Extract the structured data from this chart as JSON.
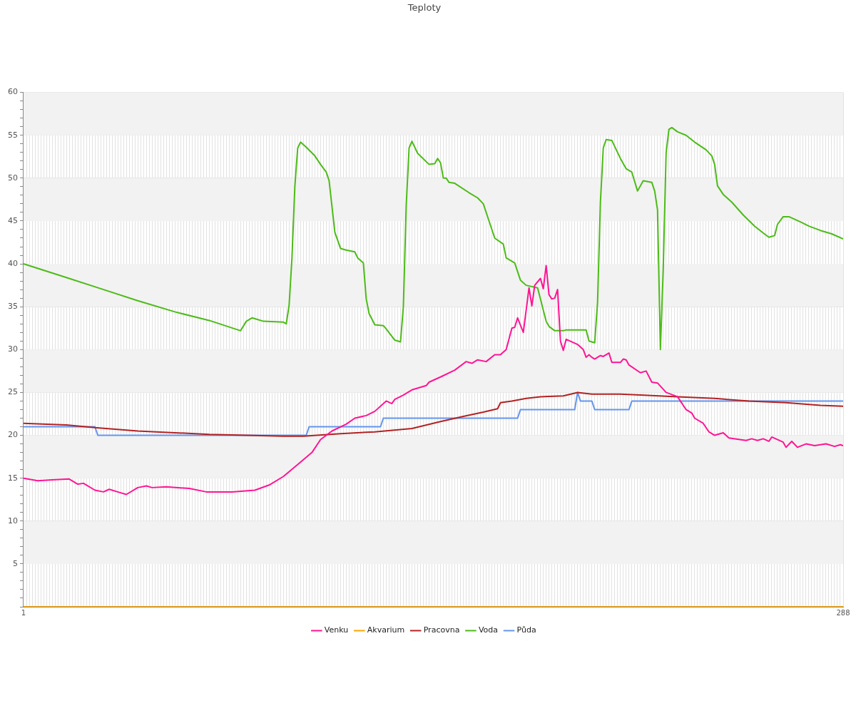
{
  "chart_data": {
    "type": "line",
    "title": "Teploty",
    "xlim": [
      1,
      288
    ],
    "xticks": [
      1,
      {
        "value": 2,
        "label": null
      },
      {
        "value": 3,
        "label": null
      },
      {
        "value": 4,
        "label": null
      },
      {
        "value": 5,
        "label": null
      },
      {
        "value": 6,
        "label": null
      },
      {
        "value": 7,
        "label": null
      },
      {
        "value": 8,
        "label": null
      },
      {
        "value": 9,
        "label": null
      },
      {
        "value": 10,
        "label": null
      },
      {
        "value": 11,
        "label": null
      },
      {
        "value": 12,
        "label": null
      },
      {
        "value": 13,
        "label": null
      },
      {
        "value": 14,
        "label": null
      },
      {
        "value": 15,
        "label": null
      },
      {
        "value": 16,
        "label": null
      },
      {
        "value": 17,
        "label": null
      },
      {
        "value": 18,
        "label": null
      },
      {
        "value": 19,
        "label": null
      },
      {
        "value": 20,
        "label": null
      },
      {
        "value": 21,
        "label": null
      },
      {
        "value": 22,
        "label": null
      },
      {
        "value": 23,
        "label": null
      },
      {
        "value": 24,
        "label": null
      },
      {
        "value": 25,
        "label": null
      },
      {
        "value": 26,
        "label": null
      },
      {
        "value": 27,
        "label": null
      },
      {
        "value": 28,
        "label": null
      },
      {
        "value": 29,
        "label": null
      },
      {
        "value": 30,
        "label": null
      },
      {
        "value": 31,
        "label": null
      },
      {
        "value": 32,
        "label": null
      },
      {
        "value": 33,
        "label": null
      },
      {
        "value": 34,
        "label": null
      },
      {
        "value": 35,
        "label": null
      },
      {
        "value": 36,
        "label": null
      },
      {
        "value": 37,
        "label": null
      },
      {
        "value": 38,
        "label": null
      },
      {
        "value": 39,
        "label": null
      },
      {
        "value": 40,
        "label": null
      },
      {
        "value": 41,
        "label": null
      },
      {
        "value": 42,
        "label": null
      },
      {
        "value": 43,
        "label": null
      },
      {
        "value": 44,
        "label": null
      },
      {
        "value": 45,
        "label": null
      },
      {
        "value": 46,
        "label": null
      },
      {
        "value": 47,
        "label": null
      },
      {
        "value": 48,
        "label": null
      },
      {
        "value": 49,
        "label": null
      },
      {
        "value": 50,
        "label": null
      },
      {
        "value": 51,
        "label": null
      },
      {
        "value": 52,
        "label": null
      },
      {
        "value": 53,
        "label": null
      },
      {
        "value": 54,
        "label": null
      },
      {
        "value": 55,
        "label": null
      },
      {
        "value": 56,
        "label": null
      },
      {
        "value": 57,
        "label": null
      },
      {
        "value": 58,
        "label": null
      },
      {
        "value": 59,
        "label": null
      },
      {
        "value": 60,
        "label": null
      },
      {
        "value": 61,
        "label": null
      },
      {
        "value": 62,
        "label": null
      },
      {
        "value": 63,
        "label": null
      },
      {
        "value": 64,
        "label": null
      },
      {
        "value": 65,
        "label": null
      },
      {
        "value": 66,
        "label": null
      },
      {
        "value": 67,
        "label": null
      },
      {
        "value": 68,
        "label": null
      },
      {
        "value": 69,
        "label": null
      },
      {
        "value": 70,
        "label": null
      },
      {
        "value": 71,
        "label": null
      },
      {
        "value": 72,
        "label": null
      },
      {
        "value": 73,
        "label": null
      },
      {
        "value": 74,
        "label": null
      },
      {
        "value": 75,
        "label": null
      },
      {
        "value": 76,
        "label": null
      },
      {
        "value": 77,
        "label": null
      },
      {
        "value": 78,
        "label": null
      },
      {
        "value": 79,
        "label": null
      },
      {
        "value": 80,
        "label": null
      },
      {
        "value": 81,
        "label": null
      },
      {
        "value": 82,
        "label": null
      },
      {
        "value": 83,
        "label": null
      },
      {
        "value": 84,
        "label": null
      },
      {
        "value": 85,
        "label": null
      },
      {
        "value": 86,
        "label": null
      },
      {
        "value": 87,
        "label": null
      },
      {
        "value": 88,
        "label": null
      },
      {
        "value": 89,
        "label": null
      },
      {
        "value": 90,
        "label": null
      },
      {
        "value": 91,
        "label": null
      },
      {
        "value": 92,
        "label": null
      },
      {
        "value": 93,
        "label": null
      },
      {
        "value": 94,
        "label": null
      },
      {
        "value": 95,
        "label": null
      },
      {
        "value": 96,
        "label": null
      },
      {
        "value": 97,
        "label": null
      },
      {
        "value": 98,
        "label": null
      },
      {
        "value": 99,
        "label": null
      },
      {
        "value": 100,
        "label": null
      },
      {
        "value": 101,
        "label": null
      },
      {
        "value": 102,
        "label": null
      },
      {
        "value": 103,
        "label": null
      },
      {
        "value": 104,
        "label": null
      },
      {
        "value": 105,
        "label": null
      },
      {
        "value": 106,
        "label": null
      },
      {
        "value": 107,
        "label": null
      },
      {
        "value": 108,
        "label": null
      },
      {
        "value": 109,
        "label": null
      },
      {
        "value": 110,
        "label": null
      },
      {
        "value": 111,
        "label": null
      },
      {
        "value": 112,
        "label": null
      },
      {
        "value": 113,
        "label": null
      },
      {
        "value": 114,
        "label": null
      },
      {
        "value": 115,
        "label": null
      },
      {
        "value": 116,
        "label": null
      },
      {
        "value": 117,
        "label": null
      },
      {
        "value": 118,
        "label": null
      },
      {
        "value": 119,
        "label": null
      },
      {
        "value": 120,
        "label": null
      },
      {
        "value": 121,
        "label": null
      },
      {
        "value": 122,
        "label": null
      },
      {
        "value": 123,
        "label": null
      },
      {
        "value": 124,
        "label": null
      },
      {
        "value": 125,
        "label": null
      },
      {
        "value": 126,
        "label": null
      },
      {
        "value": 127,
        "label": null
      },
      {
        "value": 128,
        "label": null
      },
      {
        "value": 129,
        "label": null
      },
      {
        "value": 130,
        "label": null
      },
      {
        "value": 131,
        "label": null
      },
      {
        "value": 132,
        "label": null
      },
      {
        "value": 133,
        "label": null
      },
      {
        "value": 134,
        "label": null
      },
      {
        "value": 135,
        "label": null
      },
      {
        "value": 136,
        "label": null
      },
      {
        "value": 137,
        "label": null
      },
      {
        "value": 138,
        "label": null
      },
      {
        "value": 139,
        "label": null
      },
      {
        "value": 140,
        "label": null
      },
      {
        "value": 141,
        "label": null
      },
      {
        "value": 142,
        "label": null
      },
      {
        "value": 143,
        "label": null
      },
      {
        "value": 144,
        "label": null
      },
      {
        "value": 145,
        "label": null
      },
      {
        "value": 146,
        "label": null
      },
      {
        "value": 147,
        "label": null
      },
      {
        "value": 148,
        "label": null
      },
      {
        "value": 149,
        "label": null
      },
      {
        "value": 150,
        "label": null
      },
      {
        "value": 151,
        "label": null
      },
      {
        "value": 152,
        "label": null
      },
      {
        "value": 153,
        "label": null
      },
      {
        "value": 154,
        "label": null
      },
      {
        "value": 155,
        "label": null
      },
      {
        "value": 156,
        "label": null
      },
      {
        "value": 157,
        "label": null
      },
      {
        "value": 158,
        "label": null
      },
      {
        "value": 159,
        "label": null
      },
      {
        "value": 160,
        "label": null
      },
      {
        "value": 161,
        "label": null
      },
      {
        "value": 162,
        "label": null
      },
      {
        "value": 163,
        "label": null
      },
      {
        "value": 164,
        "label": null
      },
      {
        "value": 165,
        "label": null
      },
      {
        "value": 166,
        "label": null
      },
      {
        "value": 167,
        "label": null
      },
      {
        "value": 168,
        "label": null
      },
      {
        "value": 169,
        "label": null
      },
      {
        "value": 170,
        "label": null
      },
      {
        "value": 171,
        "label": null
      },
      {
        "value": 172,
        "label": null
      },
      {
        "value": 173,
        "label": null
      },
      {
        "value": 174,
        "label": null
      },
      {
        "value": 175,
        "label": null
      },
      {
        "value": 176,
        "label": null
      },
      {
        "value": 177,
        "label": null
      },
      {
        "value": 178,
        "label": null
      },
      {
        "value": 179,
        "label": null
      },
      {
        "value": 180,
        "label": null
      },
      {
        "value": 181,
        "label": null
      },
      {
        "value": 182,
        "label": null
      },
      {
        "value": 183,
        "label": null
      },
      {
        "value": 184,
        "label": null
      },
      {
        "value": 185,
        "label": null
      },
      {
        "value": 186,
        "label": null
      },
      {
        "value": 187,
        "label": null
      },
      {
        "value": 188,
        "label": null
      },
      {
        "value": 189,
        "label": null
      },
      {
        "value": 190,
        "label": null
      },
      {
        "value": 191,
        "label": null
      },
      {
        "value": 192,
        "label": null
      },
      {
        "value": 193,
        "label": null
      },
      {
        "value": 194,
        "label": null
      },
      {
        "value": 195,
        "label": null
      },
      {
        "value": 196,
        "label": null
      },
      {
        "value": 197,
        "label": null
      },
      {
        "value": 198,
        "label": null
      },
      {
        "value": 199,
        "label": null
      },
      {
        "value": 200,
        "label": null
      },
      {
        "value": 201,
        "label": null
      },
      {
        "value": 202,
        "label": null
      },
      {
        "value": 203,
        "label": null
      },
      {
        "value": 204,
        "label": null
      },
      {
        "value": 205,
        "label": null
      },
      {
        "value": 206,
        "label": null
      },
      {
        "value": 207,
        "label": null
      },
      {
        "value": 208,
        "label": null
      },
      {
        "value": 209,
        "label": null
      },
      {
        "value": 210,
        "label": null
      },
      {
        "value": 211,
        "label": null
      },
      {
        "value": 212,
        "label": null
      },
      {
        "value": 213,
        "label": null
      },
      {
        "value": 214,
        "label": null
      },
      {
        "value": 215,
        "label": null
      },
      {
        "value": 216,
        "label": null
      },
      {
        "value": 217,
        "label": null
      },
      {
        "value": 218,
        "label": null
      },
      {
        "value": 219,
        "label": null
      },
      {
        "value": 220,
        "label": null
      },
      {
        "value": 221,
        "label": null
      },
      {
        "value": 222,
        "label": null
      },
      {
        "value": 223,
        "label": null
      },
      {
        "value": 224,
        "label": null
      },
      {
        "value": 225,
        "label": null
      },
      {
        "value": 226,
        "label": null
      },
      {
        "value": 227,
        "label": null
      },
      {
        "value": 228,
        "label": null
      },
      {
        "value": 229,
        "label": null
      },
      {
        "value": 230,
        "label": null
      },
      {
        "value": 231,
        "label": null
      },
      {
        "value": 232,
        "label": null
      },
      {
        "value": 233,
        "label": null
      },
      {
        "value": 234,
        "label": null
      },
      {
        "value": 235,
        "label": null
      },
      {
        "value": 236,
        "label": null
      },
      {
        "value": 237,
        "label": null
      },
      {
        "value": 238,
        "label": null
      },
      {
        "value": 239,
        "label": null
      },
      {
        "value": 240,
        "label": null
      },
      {
        "value": 241,
        "label": null
      },
      {
        "value": 242,
        "label": null
      },
      {
        "value": 243,
        "label": null
      },
      {
        "value": 244,
        "label": null
      },
      {
        "value": 245,
        "label": null
      },
      {
        "value": 246,
        "label": null
      },
      {
        "value": 247,
        "label": null
      },
      {
        "value": 248,
        "label": null
      },
      {
        "value": 249,
        "label": null
      },
      {
        "value": 250,
        "label": null
      },
      {
        "value": 251,
        "label": null
      },
      {
        "value": 252,
        "label": null
      },
      {
        "value": 253,
        "label": null
      },
      {
        "value": 254,
        "label": null
      },
      {
        "value": 255,
        "label": null
      },
      {
        "value": 256,
        "label": null
      },
      {
        "value": 257,
        "label": null
      },
      {
        "value": 258,
        "label": null
      },
      {
        "value": 259,
        "label": null
      },
      {
        "value": 260,
        "label": null
      },
      {
        "value": 261,
        "label": null
      },
      {
        "value": 262,
        "label": null
      },
      {
        "value": 263,
        "label": null
      },
      {
        "value": 264,
        "label": null
      },
      {
        "value": 265,
        "label": null
      },
      {
        "value": 266,
        "label": null
      },
      {
        "value": 267,
        "label": null
      },
      {
        "value": 268,
        "label": null
      },
      {
        "value": 269,
        "label": null
      },
      {
        "value": 270,
        "label": null
      },
      {
        "value": 271,
        "label": null
      },
      {
        "value": 272,
        "label": null
      },
      {
        "value": 273,
        "label": null
      },
      {
        "value": 274,
        "label": null
      },
      {
        "value": 275,
        "label": null
      },
      {
        "value": 276,
        "label": null
      },
      {
        "value": 277,
        "label": null
      },
      {
        "value": 278,
        "label": null
      },
      {
        "value": 279,
        "label": null
      },
      {
        "value": 280,
        "label": null
      },
      {
        "value": 281,
        "label": null
      },
      {
        "value": 282,
        "label": null
      },
      {
        "value": 283,
        "label": null
      },
      {
        "value": 284,
        "label": null
      },
      {
        "value": 285,
        "label": null
      },
      {
        "value": 286,
        "label": null
      },
      {
        "value": 287,
        "label": null
      },
      288
    ],
    "ylim": [
      0,
      60
    ],
    "yticks": [
      {
        "value": 0,
        "label": null
      },
      {
        "value": 1,
        "label": null
      },
      {
        "value": 2,
        "label": null
      },
      {
        "value": 3,
        "label": null
      },
      {
        "value": 4,
        "label": null
      },
      5,
      {
        "value": 6,
        "label": null
      },
      {
        "value": 7,
        "label": null
      },
      {
        "value": 8,
        "label": null
      },
      {
        "value": 9,
        "label": null
      },
      10,
      {
        "value": 11,
        "label": null
      },
      {
        "value": 12,
        "label": null
      },
      {
        "value": 13,
        "label": null
      },
      {
        "value": 14,
        "label": null
      },
      15,
      {
        "value": 16,
        "label": null
      },
      {
        "value": 17,
        "label": null
      },
      {
        "value": 18,
        "label": null
      },
      {
        "value": 19,
        "label": null
      },
      20,
      {
        "value": 21,
        "label": null
      },
      {
        "value": 22,
        "label": null
      },
      {
        "value": 23,
        "label": null
      },
      {
        "value": 24,
        "label": null
      },
      25,
      {
        "value": 26,
        "label": null
      },
      {
        "value": 27,
        "label": null
      },
      {
        "value": 28,
        "label": null
      },
      {
        "value": 29,
        "label": null
      },
      30,
      {
        "value": 31,
        "label": null
      },
      {
        "value": 32,
        "label": null
      },
      {
        "value": 33,
        "label": null
      },
      {
        "value": 34,
        "label": null
      },
      35,
      {
        "value": 36,
        "label": null
      },
      {
        "value": 37,
        "label": null
      },
      {
        "value": 38,
        "label": null
      },
      {
        "value": 39,
        "label": null
      },
      40,
      {
        "value": 41,
        "label": null
      },
      {
        "value": 42,
        "label": null
      },
      {
        "value": 43,
        "label": null
      },
      {
        "value": 44,
        "label": null
      },
      45,
      {
        "value": 46,
        "label": null
      },
      {
        "value": 47,
        "label": null
      },
      {
        "value": 48,
        "label": null
      },
      {
        "value": 49,
        "label": null
      },
      50,
      {
        "value": 51,
        "label": null
      },
      {
        "value": 52,
        "label": null
      },
      {
        "value": 53,
        "label": null
      },
      {
        "value": 54,
        "label": null
      },
      55,
      {
        "value": 56,
        "label": null
      },
      {
        "value": 57,
        "label": null
      },
      {
        "value": 58,
        "label": null
      },
      {
        "value": 59,
        "label": null
      },
      60
    ],
    "grid": true,
    "legend": "bottom",
    "bands": [
      {
        "axis": "y",
        "from": 5,
        "to": 10,
        "color": "#f2f2f2"
      },
      {
        "axis": "y",
        "from": 15,
        "to": 20,
        "color": "#f2f2f2"
      },
      {
        "axis": "y",
        "from": 25,
        "to": 30,
        "color": "#f2f2f2"
      },
      {
        "axis": "y",
        "from": 35,
        "to": 40,
        "color": "#f2f2f2"
      },
      {
        "axis": "y",
        "from": 45,
        "to": 50,
        "color": "#f2f2f2"
      },
      {
        "axis": "y",
        "from": 55,
        "to": 60,
        "color": "#f2f2f2"
      }
    ],
    "series": [
      {
        "name": "Půda",
        "color": "#6495ed",
        "x": [
          1,
          26,
          27,
          100,
          101,
          126,
          127,
          174,
          175,
          194,
          195,
          196,
          200,
          201,
          213,
          214,
          288
        ],
        "values": [
          21,
          21,
          20,
          20,
          21,
          21,
          22,
          22,
          23,
          23,
          25,
          24,
          24,
          23,
          23,
          24,
          24
        ]
      },
      {
        "name": "Voda",
        "color": "#4cbb17",
        "x": [
          1,
          16,
          29,
          41,
          54,
          66,
          77,
          79,
          81,
          85,
          92,
          93,
          94,
          95,
          96,
          97,
          98,
          100,
          103,
          105,
          107,
          108,
          110,
          112,
          114,
          117,
          118,
          120,
          121,
          122,
          124,
          127,
          128,
          131,
          133,
          134,
          135,
          136,
          137,
          139,
          143,
          145,
          146,
          147,
          148,
          149,
          150,
          152,
          157,
          160,
          162,
          164,
          166,
          169,
          170,
          173,
          175,
          177,
          181,
          182,
          184,
          185,
          187,
          190,
          191,
          198,
          199,
          201,
          202,
          203,
          204,
          205,
          207,
          208,
          210,
          212,
          214,
          216,
          218,
          221,
          222,
          223,
          224,
          225,
          226,
          227,
          228,
          230,
          233,
          236,
          240,
          242,
          243,
          244,
          246,
          249,
          253,
          257,
          260,
          262,
          264,
          265,
          267,
          269,
          273,
          276,
          280,
          284,
          288
        ],
        "values": [
          40.0,
          38.4,
          37.0,
          35.7,
          34.4,
          33.4,
          32.2,
          33.3,
          33.7,
          33.3,
          33.2,
          33.0,
          35.2,
          40.7,
          49.0,
          53.5,
          54.2,
          53.6,
          52.6,
          51.6,
          50.7,
          49.7,
          43.7,
          41.8,
          41.6,
          41.4,
          40.7,
          40.1,
          35.9,
          34.2,
          32.9,
          32.8,
          32.4,
          31.1,
          30.9,
          35.0,
          46.8,
          53.5,
          54.3,
          52.9,
          51.6,
          51.7,
          52.3,
          51.8,
          50.0,
          50.0,
          49.5,
          49.4,
          48.3,
          47.7,
          47.0,
          45.0,
          43.0,
          42.3,
          40.7,
          40.1,
          38.1,
          37.5,
          37.2,
          35.9,
          33.3,
          32.7,
          32.2,
          32.2,
          32.3,
          32.3,
          31.0,
          30.8,
          35.5,
          47.2,
          53.5,
          54.5,
          54.4,
          53.7,
          52.3,
          51.1,
          50.7,
          48.5,
          49.7,
          49.5,
          48.5,
          46.3,
          30.0,
          39.4,
          52.9,
          55.7,
          55.9,
          55.4,
          55.0,
          54.2,
          53.3,
          52.6,
          51.6,
          49.1,
          48.1,
          47.2,
          45.7,
          44.4,
          43.6,
          43.1,
          43.3,
          44.6,
          45.5,
          45.5,
          44.9,
          44.4,
          43.9,
          43.5,
          42.9
        ]
      },
      {
        "name": "Pracovna",
        "color": "#b22222",
        "x": [
          1,
          16,
          26,
          41,
          54,
          66,
          79,
          92,
          99,
          112,
          124,
          137,
          147,
          155,
          162,
          167,
          168,
          172,
          177,
          182,
          190,
          195,
          200,
          210,
          217,
          230,
          243,
          255,
          268,
          280,
          288
        ],
        "values": [
          21.4,
          21.2,
          20.9,
          20.5,
          20.3,
          20.1,
          20.0,
          19.9,
          19.9,
          20.2,
          20.4,
          20.8,
          21.6,
          22.2,
          22.7,
          23.1,
          23.8,
          24.0,
          24.3,
          24.5,
          24.6,
          25.0,
          24.8,
          24.8,
          24.7,
          24.5,
          24.3,
          24.0,
          23.8,
          23.5,
          23.4
        ]
      },
      {
        "name": "Akvarium",
        "color": "#ffa500",
        "x": [
          1,
          288
        ],
        "values": [
          0,
          0
        ]
      },
      {
        "name": "Venku",
        "color": "#ff1493",
        "x": [
          1,
          6,
          11,
          17,
          20,
          22,
          26,
          29,
          31,
          35,
          37,
          41,
          44,
          46,
          51,
          59,
          65,
          74,
          82,
          87,
          92,
          97,
          102,
          105,
          109,
          114,
          117,
          121,
          124,
          128,
          130,
          131,
          134,
          137,
          142,
          143,
          147,
          152,
          156,
          158,
          160,
          163,
          166,
          168,
          170,
          172,
          173,
          174,
          176,
          178,
          179,
          180,
          182,
          183,
          184,
          185,
          186,
          187,
          188,
          189,
          190,
          191,
          195,
          197,
          198,
          199,
          200,
          201,
          203,
          204,
          206,
          207,
          210,
          211,
          212,
          213,
          217,
          219,
          221,
          223,
          226,
          230,
          233,
          235,
          236,
          239,
          241,
          243,
          246,
          248,
          254,
          256,
          258,
          260,
          262,
          263,
          267,
          268,
          270,
          272,
          275,
          278,
          282,
          285,
          287,
          288
        ],
        "values": [
          15.0,
          14.7,
          14.8,
          14.9,
          14.3,
          14.4,
          13.6,
          13.4,
          13.7,
          13.3,
          13.1,
          13.9,
          14.1,
          13.9,
          14.0,
          13.8,
          13.4,
          13.4,
          13.6,
          14.2,
          15.2,
          16.6,
          18.0,
          19.5,
          20.5,
          21.3,
          22.0,
          22.3,
          22.8,
          24.0,
          23.7,
          24.2,
          24.7,
          25.3,
          25.8,
          26.2,
          26.8,
          27.6,
          28.6,
          28.4,
          28.8,
          28.6,
          29.4,
          29.4,
          30.0,
          32.5,
          32.6,
          33.7,
          32.0,
          37.2,
          35.1,
          37.5,
          38.3,
          37.1,
          39.8,
          36.4,
          35.9,
          36.0,
          37.0,
          31.0,
          29.9,
          31.2,
          30.6,
          30.0,
          29.1,
          29.4,
          29.1,
          28.9,
          29.3,
          29.2,
          29.6,
          28.5,
          28.5,
          28.9,
          28.8,
          28.2,
          27.3,
          27.5,
          26.2,
          26.1,
          25.0,
          24.5,
          23.0,
          22.6,
          22.0,
          21.4,
          20.4,
          20.0,
          20.3,
          19.7,
          19.4,
          19.6,
          19.4,
          19.6,
          19.3,
          19.8,
          19.2,
          18.6,
          19.3,
          18.6,
          19.0,
          18.8,
          19.0,
          18.7,
          18.9,
          18.8
        ]
      }
    ]
  }
}
